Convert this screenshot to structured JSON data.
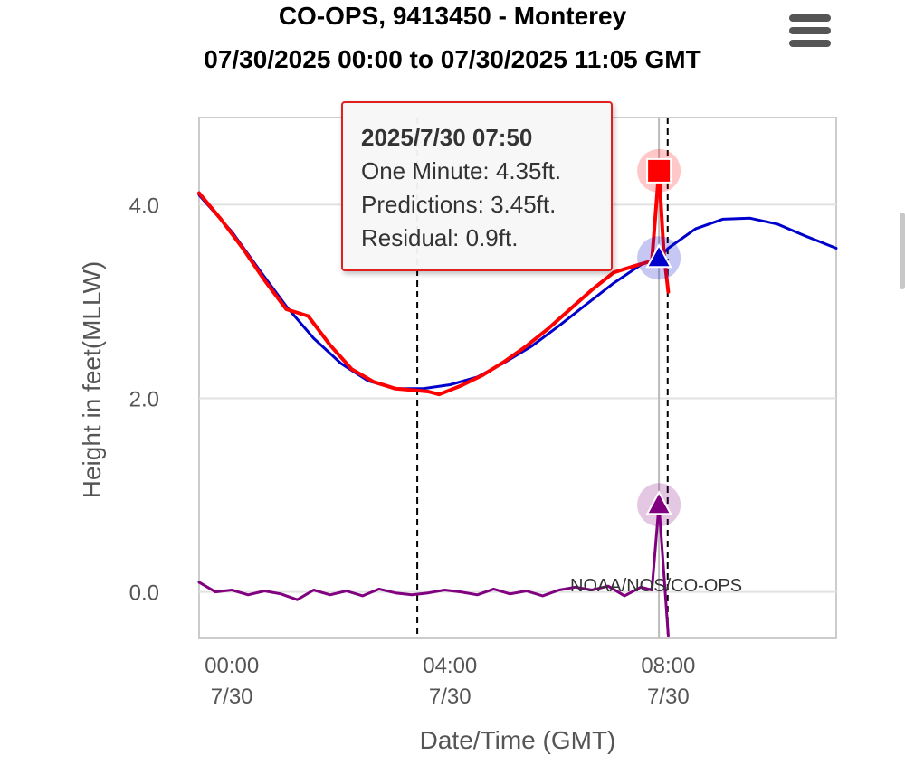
{
  "header": {
    "title_line1": "CO-OPS, 9413450 - Monterey",
    "title_line2": "07/30/2025 00:00 to 07/30/2025 11:05 GMT"
  },
  "menu": {
    "icon": "hamburger-menu-icon"
  },
  "tooltip": {
    "time": "2025/7/30 07:50",
    "line1": "One Minute: 4.35ft.",
    "line2": "Predictions: 3.45ft.",
    "line3": "Residual: 0.9ft."
  },
  "chart_data": {
    "type": "line",
    "title": "CO-OPS, 9413450 - Monterey",
    "subtitle": "07/30/2025 00:00 to 07/30/2025 11:05 GMT",
    "xlabel": "Date/Time (GMT)",
    "ylabel": "Height in feet(MLLW)",
    "x_unit": "hours GMT on 07/30/2025",
    "xlim": [
      -0.6,
      11.08
    ],
    "ylim": [
      -0.48,
      4.9
    ],
    "x_ticks": [
      {
        "value": 0,
        "line1": "00:00",
        "line2": "7/30"
      },
      {
        "value": 4,
        "line1": "04:00",
        "line2": "7/30"
      },
      {
        "value": 8,
        "line1": "08:00",
        "line2": "7/30"
      }
    ],
    "y_ticks": [
      {
        "value": 0,
        "label": "0.0"
      },
      {
        "value": 2,
        "label": "2.0"
      },
      {
        "value": 4,
        "label": "4.0"
      }
    ],
    "grid": true,
    "credit": "NOAA/NOS/CO-OPS",
    "crosshair_x": 7.83,
    "vertical_markers": [
      3.4,
      7.99
    ],
    "series": [
      {
        "color": "#0000cc",
        "x": [
          -0.6,
          0.0,
          0.5,
          1.0,
          1.5,
          2.0,
          2.5,
          3.0,
          3.5,
          4.0,
          4.5,
          5.0,
          5.5,
          6.0,
          6.5,
          7.0,
          7.5,
          7.83,
          8.0,
          8.5,
          9.0,
          9.5,
          10.0,
          10.5,
          11.08
        ],
        "y": [
          4.1,
          3.72,
          3.33,
          2.95,
          2.62,
          2.36,
          2.18,
          2.1,
          2.1,
          2.14,
          2.22,
          2.37,
          2.54,
          2.75,
          2.97,
          3.19,
          3.38,
          3.45,
          3.55,
          3.75,
          3.85,
          3.86,
          3.8,
          3.68,
          3.55
        ],
        "highlight": {
          "x": 7.83,
          "y": 3.45,
          "marker": "triangle"
        }
      },
      {
        "color": "#ff0000",
        "x": [
          -0.6,
          -0.2,
          0.2,
          0.6,
          1.0,
          1.4,
          1.8,
          2.2,
          2.6,
          3.0,
          3.4,
          3.6,
          3.8,
          4.2,
          4.6,
          5.0,
          5.4,
          5.8,
          6.2,
          6.6,
          7.0,
          7.4,
          7.7,
          7.83,
          7.92,
          8.0
        ],
        "y": [
          4.12,
          3.85,
          3.55,
          3.22,
          2.92,
          2.85,
          2.55,
          2.3,
          2.17,
          2.1,
          2.08,
          2.07,
          2.04,
          2.13,
          2.24,
          2.38,
          2.54,
          2.72,
          2.92,
          3.12,
          3.3,
          3.37,
          3.42,
          4.35,
          3.5,
          3.1
        ],
        "highlight": {
          "x": 7.83,
          "y": 4.35,
          "marker": "square"
        }
      },
      {
        "color": "#800080",
        "x": [
          -0.6,
          -0.3,
          0.0,
          0.3,
          0.6,
          0.9,
          1.2,
          1.5,
          1.8,
          2.1,
          2.4,
          2.7,
          3.0,
          3.3,
          3.6,
          3.9,
          4.2,
          4.5,
          4.8,
          5.1,
          5.4,
          5.7,
          6.0,
          6.3,
          6.6,
          6.9,
          7.2,
          7.5,
          7.7,
          7.83,
          7.92,
          8.0
        ],
        "y": [
          0.1,
          0.0,
          0.02,
          -0.03,
          0.01,
          -0.02,
          -0.08,
          0.02,
          -0.03,
          0.01,
          -0.04,
          0.03,
          -0.01,
          -0.03,
          -0.01,
          0.02,
          0.0,
          -0.03,
          0.03,
          -0.02,
          0.01,
          -0.04,
          0.02,
          0.05,
          0.02,
          0.06,
          -0.04,
          0.05,
          0.02,
          0.9,
          0.2,
          -0.45
        ],
        "highlight": {
          "x": 7.83,
          "y": 0.9,
          "marker": "triangle"
        }
      }
    ]
  }
}
